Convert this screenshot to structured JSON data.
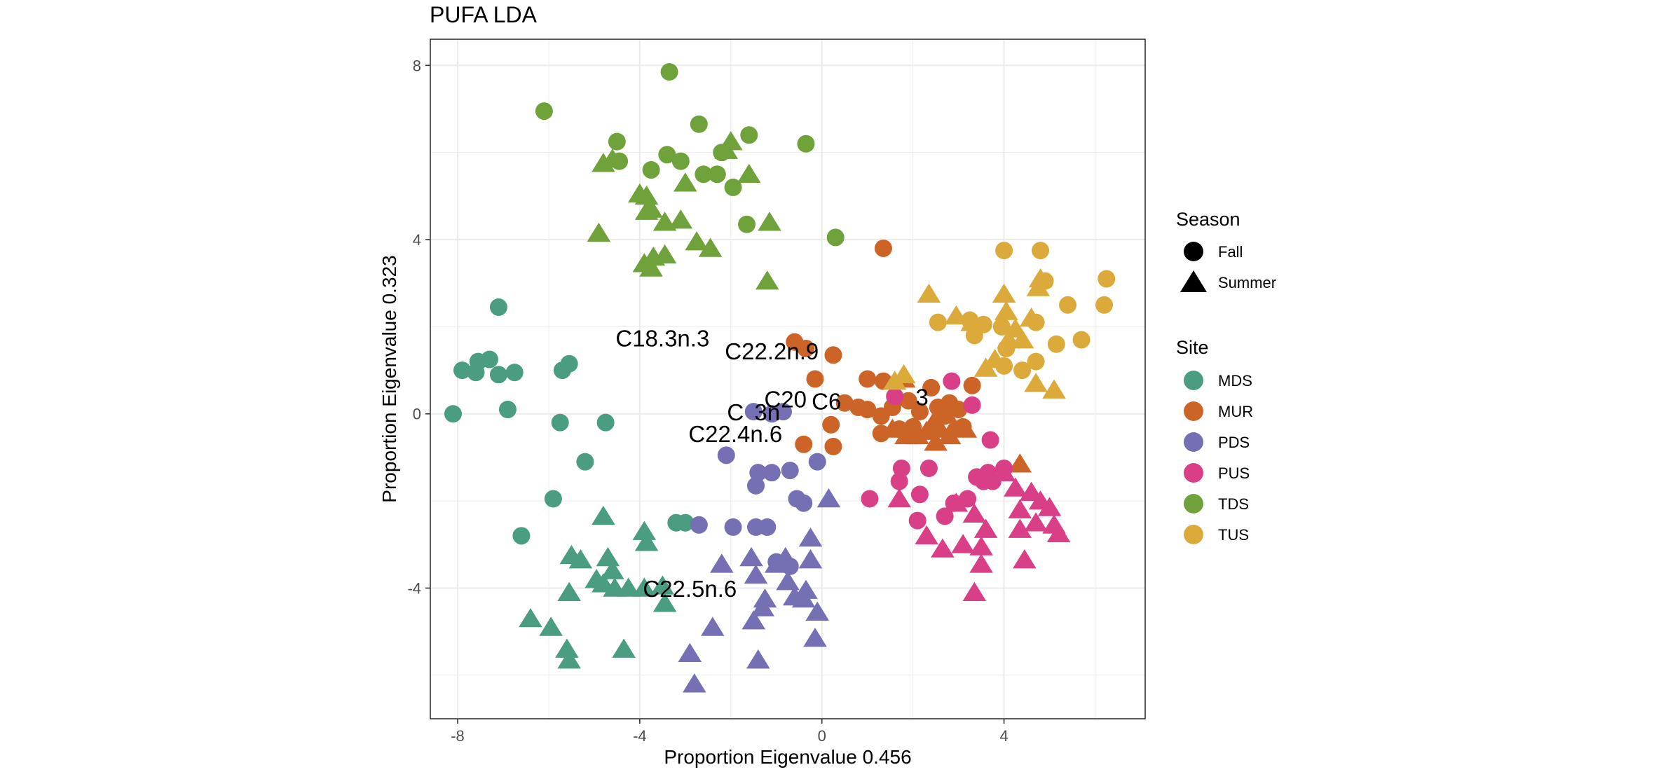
{
  "chart_data": {
    "type": "scatter",
    "title": "PUFA LDA",
    "xlabel": "Proportion Eigenvalue 0.456",
    "ylabel": "Proportion Eigenvalue 0.323",
    "xlim": [
      -8.6,
      7.1
    ],
    "ylim": [
      -7.0,
      8.6
    ],
    "xticks": [
      -8,
      -4,
      0,
      4
    ],
    "yticks": [
      8,
      4,
      0,
      -4
    ],
    "xtick_labels": [
      "-8",
      "-4",
      "0",
      "4"
    ],
    "ytick_labels": [
      "8",
      "4",
      "0",
      "-4"
    ],
    "grid": true,
    "legend_position": "right",
    "shape_legend": {
      "title": "Season",
      "items": [
        {
          "label": "Fall",
          "shape": "circle"
        },
        {
          "label": "Summer",
          "shape": "triangle"
        }
      ]
    },
    "color_legend": {
      "title": "Site",
      "items": [
        {
          "label": "MDS",
          "color": "#4a9d80"
        },
        {
          "label": "MUR",
          "color": "#cc6428"
        },
        {
          "label": "PDS",
          "color": "#7570b3"
        },
        {
          "label": "PUS",
          "color": "#d83f87"
        },
        {
          "label": "TDS",
          "color": "#6fa23a"
        },
        {
          "label": "TUS",
          "color": "#dcaa3a"
        }
      ]
    },
    "annotations": [
      {
        "text": "C18.3n.3",
        "x": -3.5,
        "y": 1.55
      },
      {
        "text": "C22.2n.9",
        "x": -1.1,
        "y": 1.25
      },
      {
        "text": "C20",
        "x": -0.8,
        "y": 0.15
      },
      {
        "text": "C22.4n.6",
        "x": -1.9,
        "y": -0.65
      },
      {
        "text": "C22.5n.6",
        "x": -2.9,
        "y": -4.2
      }
    ],
    "annotation_fragments": [
      {
        "text": "C6",
        "x": 0.1,
        "y": 0.1
      },
      {
        "text": "C",
        "x": -1.9,
        "y": -0.15
      },
      {
        "text": "3n",
        "x": -1.2,
        "y": -0.15
      },
      {
        "text": "3",
        "x": 2.2,
        "y": 0.2
      }
    ],
    "series": [
      {
        "site": "MDS",
        "season": "Fall",
        "points": [
          [
            -8.1,
            0.0
          ],
          [
            -7.9,
            1.0
          ],
          [
            -7.6,
            0.95
          ],
          [
            -7.55,
            1.2
          ],
          [
            -7.3,
            1.25
          ],
          [
            -7.1,
            0.9
          ],
          [
            -7.1,
            2.45
          ],
          [
            -6.9,
            0.1
          ],
          [
            -6.75,
            0.95
          ],
          [
            -5.75,
            -0.2
          ],
          [
            -5.7,
            1.0
          ],
          [
            -5.55,
            1.15
          ],
          [
            -4.75,
            -0.2
          ],
          [
            -5.2,
            -1.1
          ],
          [
            -5.9,
            -1.95
          ],
          [
            -6.6,
            -2.8
          ],
          [
            -3.2,
            -2.5
          ],
          [
            -3.0,
            -2.5
          ]
        ]
      },
      {
        "site": "MDS",
        "season": "Summer",
        "points": [
          [
            -6.4,
            -4.7
          ],
          [
            -5.95,
            -4.9
          ],
          [
            -5.6,
            -5.4
          ],
          [
            -5.55,
            -5.65
          ],
          [
            -5.5,
            -3.25
          ],
          [
            -5.3,
            -3.35
          ],
          [
            -5.55,
            -4.1
          ],
          [
            -4.95,
            -3.8
          ],
          [
            -4.8,
            -2.35
          ],
          [
            -4.7,
            -3.3
          ],
          [
            -4.6,
            -3.6
          ],
          [
            -4.55,
            -4.0
          ],
          [
            -4.25,
            -4.0
          ],
          [
            -4.35,
            -5.4
          ],
          [
            -3.9,
            -2.7
          ],
          [
            -3.85,
            -2.95
          ],
          [
            -3.9,
            -4.0
          ],
          [
            -3.5,
            -3.95
          ],
          [
            -3.45,
            -4.35
          ],
          [
            -4.8,
            -3.9
          ]
        ]
      },
      {
        "site": "TDS",
        "season": "Fall",
        "points": [
          [
            -6.1,
            6.95
          ],
          [
            -4.5,
            6.25
          ],
          [
            -4.45,
            5.8
          ],
          [
            -3.75,
            5.6
          ],
          [
            -3.4,
            5.95
          ],
          [
            -3.35,
            7.85
          ],
          [
            -3.1,
            5.8
          ],
          [
            -2.7,
            6.65
          ],
          [
            -2.6,
            5.5
          ],
          [
            -2.3,
            5.5
          ],
          [
            -2.2,
            6.0
          ],
          [
            -1.95,
            5.2
          ],
          [
            -1.65,
            4.35
          ],
          [
            -1.6,
            6.4
          ],
          [
            -0.35,
            6.2
          ],
          [
            0.3,
            4.05
          ]
        ]
      },
      {
        "site": "TDS",
        "season": "Summer",
        "points": [
          [
            -4.8,
            5.75
          ],
          [
            -4.6,
            5.85
          ],
          [
            -4.0,
            5.05
          ],
          [
            -3.85,
            5.0
          ],
          [
            -3.85,
            4.65
          ],
          [
            -3.75,
            4.7
          ],
          [
            -3.45,
            4.4
          ],
          [
            -3.1,
            4.45
          ],
          [
            -3.0,
            5.3
          ],
          [
            -2.75,
            3.95
          ],
          [
            -2.45,
            3.8
          ],
          [
            -2.1,
            6.05
          ],
          [
            -2.0,
            6.25
          ],
          [
            -1.6,
            5.5
          ],
          [
            -1.15,
            4.4
          ],
          [
            -1.2,
            3.05
          ],
          [
            -3.9,
            3.45
          ],
          [
            -3.7,
            3.6
          ],
          [
            -3.45,
            3.65
          ],
          [
            -3.75,
            3.35
          ],
          [
            -4.9,
            4.15
          ]
        ]
      },
      {
        "site": "PDS",
        "season": "Fall",
        "points": [
          [
            -2.1,
            -0.95
          ],
          [
            -1.4,
            -1.35
          ],
          [
            -1.45,
            -1.65
          ],
          [
            -1.1,
            -1.35
          ],
          [
            -0.7,
            -1.3
          ],
          [
            -0.1,
            -1.1
          ],
          [
            -0.55,
            -1.95
          ],
          [
            -0.4,
            -2.05
          ],
          [
            -2.7,
            -2.55
          ],
          [
            -1.95,
            -2.6
          ],
          [
            -1.45,
            -2.6
          ],
          [
            -1.2,
            -2.6
          ],
          [
            -1.0,
            -3.4
          ],
          [
            -0.7,
            -3.5
          ],
          [
            -1.5,
            0.05
          ],
          [
            -1.1,
            0.0
          ],
          [
            -0.85,
            0.05
          ]
        ]
      },
      {
        "site": "PDS",
        "season": "Summer",
        "points": [
          [
            -2.2,
            -3.45
          ],
          [
            -1.55,
            -3.3
          ],
          [
            -1.45,
            -3.7
          ],
          [
            -1.3,
            -4.45
          ],
          [
            -1.25,
            -4.25
          ],
          [
            -1.0,
            -3.45
          ],
          [
            -0.8,
            -3.3
          ],
          [
            -0.75,
            -3.85
          ],
          [
            -0.6,
            -4.2
          ],
          [
            -0.35,
            -4.05
          ],
          [
            -0.4,
            -4.25
          ],
          [
            -0.25,
            -3.35
          ],
          [
            -0.25,
            -2.85
          ],
          [
            -0.1,
            -4.55
          ],
          [
            0.15,
            -1.95
          ],
          [
            -2.4,
            -4.9
          ],
          [
            -1.5,
            -4.75
          ],
          [
            -1.4,
            -5.65
          ],
          [
            -0.15,
            -5.15
          ],
          [
            -2.9,
            -5.5
          ],
          [
            -2.8,
            -6.2
          ]
        ]
      },
      {
        "site": "MUR",
        "season": "Fall",
        "points": [
          [
            -0.6,
            1.65
          ],
          [
            -0.35,
            1.5
          ],
          [
            -0.15,
            0.8
          ],
          [
            0.25,
            1.35
          ],
          [
            1.0,
            0.8
          ],
          [
            1.35,
            0.75
          ],
          [
            1.35,
            3.8
          ],
          [
            0.5,
            0.25
          ],
          [
            0.8,
            0.15
          ],
          [
            1.0,
            0.1
          ],
          [
            1.3,
            -0.05
          ],
          [
            1.55,
            0.15
          ],
          [
            1.9,
            0.3
          ],
          [
            2.0,
            -0.3
          ],
          [
            2.15,
            0.05
          ],
          [
            2.4,
            0.6
          ],
          [
            2.55,
            0.15
          ],
          [
            2.7,
            -0.05
          ],
          [
            2.8,
            0.25
          ],
          [
            3.0,
            0.1
          ],
          [
            3.1,
            -0.3
          ],
          [
            3.3,
            0.65
          ],
          [
            -0.4,
            -0.7
          ],
          [
            0.2,
            -0.25
          ],
          [
            0.25,
            -0.75
          ],
          [
            1.3,
            -0.45
          ],
          [
            1.7,
            -0.35
          ]
        ]
      },
      {
        "site": "MUR",
        "season": "Summer",
        "points": [
          [
            1.8,
            0.8
          ],
          [
            1.55,
            -0.35
          ],
          [
            1.85,
            -0.5
          ],
          [
            2.1,
            -0.5
          ],
          [
            2.3,
            -0.4
          ],
          [
            2.45,
            -0.2
          ],
          [
            2.6,
            -0.35
          ],
          [
            2.8,
            -0.5
          ],
          [
            2.9,
            -0.3
          ],
          [
            3.15,
            -0.35
          ],
          [
            2.5,
            -0.65
          ],
          [
            4.35,
            -1.15
          ]
        ]
      },
      {
        "site": "PUS",
        "season": "Fall",
        "points": [
          [
            2.85,
            0.75
          ],
          [
            1.05,
            -1.95
          ],
          [
            1.75,
            -1.25
          ],
          [
            1.7,
            -1.55
          ],
          [
            2.15,
            -1.85
          ],
          [
            2.35,
            -1.25
          ],
          [
            2.1,
            -2.45
          ],
          [
            2.7,
            -2.35
          ],
          [
            2.9,
            -2.05
          ],
          [
            3.2,
            -1.95
          ],
          [
            3.4,
            -1.45
          ],
          [
            3.55,
            -1.55
          ],
          [
            3.65,
            -1.35
          ],
          [
            3.75,
            -1.55
          ],
          [
            3.7,
            -0.6
          ],
          [
            4.0,
            -1.25
          ],
          [
            3.3,
            0.2
          ],
          [
            1.6,
            0.4
          ]
        ]
      },
      {
        "site": "PUS",
        "season": "Summer",
        "points": [
          [
            1.7,
            -1.95
          ],
          [
            2.3,
            -2.8
          ],
          [
            2.65,
            -3.1
          ],
          [
            2.95,
            -2.05
          ],
          [
            3.35,
            -2.3
          ],
          [
            3.1,
            -3.0
          ],
          [
            3.6,
            -2.65
          ],
          [
            3.5,
            -3.05
          ],
          [
            3.5,
            -3.45
          ],
          [
            3.35,
            -4.1
          ],
          [
            4.25,
            -1.7
          ],
          [
            4.35,
            -2.2
          ],
          [
            4.35,
            -2.65
          ],
          [
            4.45,
            -3.35
          ],
          [
            4.6,
            -1.8
          ],
          [
            4.8,
            -2.0
          ],
          [
            4.7,
            -2.5
          ],
          [
            5.1,
            -2.55
          ],
          [
            5.0,
            -2.15
          ],
          [
            5.2,
            -2.75
          ],
          [
            4.0,
            -1.35
          ]
        ]
      },
      {
        "site": "TUS",
        "season": "Fall",
        "points": [
          [
            2.55,
            2.1
          ],
          [
            3.25,
            2.15
          ],
          [
            3.35,
            1.8
          ],
          [
            3.55,
            2.05
          ],
          [
            3.95,
            2.0
          ],
          [
            4.0,
            3.75
          ],
          [
            4.0,
            1.1
          ],
          [
            4.05,
            1.5
          ],
          [
            4.4,
            1.0
          ],
          [
            4.7,
            1.2
          ],
          [
            4.7,
            2.1
          ],
          [
            4.8,
            3.75
          ],
          [
            4.9,
            3.05
          ],
          [
            5.15,
            1.6
          ],
          [
            5.4,
            2.5
          ],
          [
            5.7,
            1.7
          ],
          [
            6.2,
            2.5
          ],
          [
            6.25,
            3.1
          ]
        ]
      },
      {
        "site": "TUS",
        "season": "Summer",
        "points": [
          [
            2.35,
            2.75
          ],
          [
            2.95,
            2.25
          ],
          [
            3.3,
            2.1
          ],
          [
            3.6,
            1.05
          ],
          [
            3.8,
            1.25
          ],
          [
            4.0,
            2.75
          ],
          [
            4.05,
            2.35
          ],
          [
            4.1,
            1.7
          ],
          [
            4.25,
            1.95
          ],
          [
            4.4,
            1.7
          ],
          [
            4.6,
            2.2
          ],
          [
            4.75,
            2.9
          ],
          [
            4.8,
            3.1
          ],
          [
            4.7,
            0.7
          ],
          [
            5.1,
            0.55
          ],
          [
            1.8,
            0.9
          ],
          [
            1.6,
            0.75
          ]
        ]
      }
    ]
  }
}
